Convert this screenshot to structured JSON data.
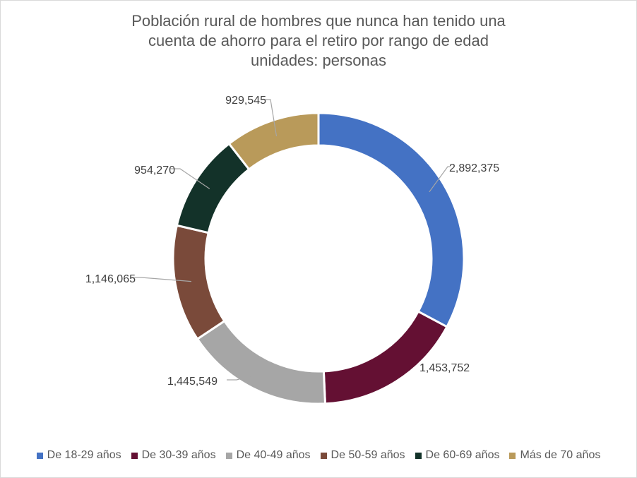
{
  "chart_data": {
    "type": "pie",
    "variant": "doughnut",
    "title_lines": [
      "Población rural de hombres que nunca han tenido una",
      "cuenta de ahorro para el retiro por rango de edad",
      "unidades: personas"
    ],
    "categories": [
      "De 18-29 años",
      "De 30-39 años",
      "De 40-49 años",
      "De 50-59 años",
      "De 60-69 años",
      "Más de 70 años"
    ],
    "values": [
      2892375,
      1453752,
      1445549,
      1146065,
      954270,
      929545
    ],
    "value_labels": [
      "2,892,375",
      "1,453,752",
      "1,445,549",
      "1,146,065",
      "954,270",
      "929,545"
    ],
    "colors": [
      "#4472C4",
      "#641033",
      "#A6A6A6",
      "#7A4A3A",
      "#133229",
      "#B99A5A"
    ],
    "legend_position": "bottom"
  }
}
